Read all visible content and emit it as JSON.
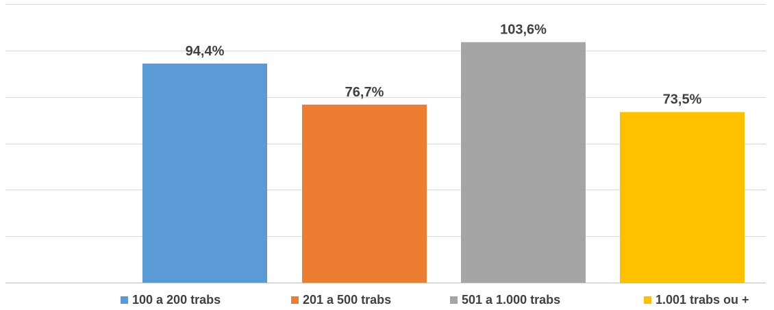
{
  "chart_data": {
    "type": "bar",
    "categories": [
      "100 a 200 trabs",
      "201 a 500 trabs",
      "501 a 1.000 trabs",
      "1.001 trabs ou +"
    ],
    "values": [
      94.4,
      76.7,
      103.6,
      73.5
    ],
    "data_labels": [
      "94,4%",
      "76,7%",
      "103,6%",
      "73,5%"
    ],
    "colors": [
      "#5b9bd5",
      "#ed7d31",
      "#a5a5a5",
      "#ffc000"
    ],
    "title": "",
    "xlabel": "",
    "ylabel": "",
    "ylim": [
      0,
      120
    ],
    "grid": true,
    "legend_position": "bottom",
    "legend": [
      "100 a 200 trabs",
      "201 a 500 trabs",
      "501 a 1.000 trabs",
      "1.001 trabs ou +"
    ]
  }
}
